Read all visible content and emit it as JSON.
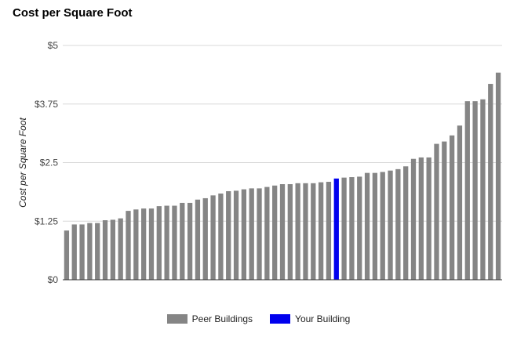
{
  "chart_data": {
    "type": "bar",
    "title": "Cost per Square Foot",
    "ylabel": "Cost per Square Foot",
    "xlabel": "",
    "ylim": [
      0,
      5
    ],
    "y_ticks": [
      0,
      1.25,
      2.5,
      3.75,
      5
    ],
    "y_tick_labels": [
      "$0",
      "$1.25",
      "$2.5",
      "$3.75",
      "$5"
    ],
    "grid": true,
    "legend_position": "bottom",
    "highlight_index": 35,
    "series": [
      {
        "name": "Peer Buildings",
        "color": "#858585"
      },
      {
        "name": "Your Building",
        "color": "#0000ee"
      }
    ],
    "values": [
      1.05,
      1.18,
      1.18,
      1.21,
      1.21,
      1.27,
      1.28,
      1.31,
      1.47,
      1.5,
      1.52,
      1.52,
      1.57,
      1.58,
      1.58,
      1.64,
      1.64,
      1.71,
      1.74,
      1.8,
      1.84,
      1.89,
      1.9,
      1.93,
      1.95,
      1.95,
      1.98,
      2.01,
      2.04,
      2.04,
      2.06,
      2.06,
      2.06,
      2.08,
      2.09,
      2.16,
      2.18,
      2.19,
      2.2,
      2.28,
      2.28,
      2.3,
      2.33,
      2.36,
      2.42,
      2.58,
      2.61,
      2.61,
      2.9,
      2.95,
      3.08,
      3.29,
      3.81,
      3.81,
      3.85,
      4.18,
      4.42
    ]
  }
}
